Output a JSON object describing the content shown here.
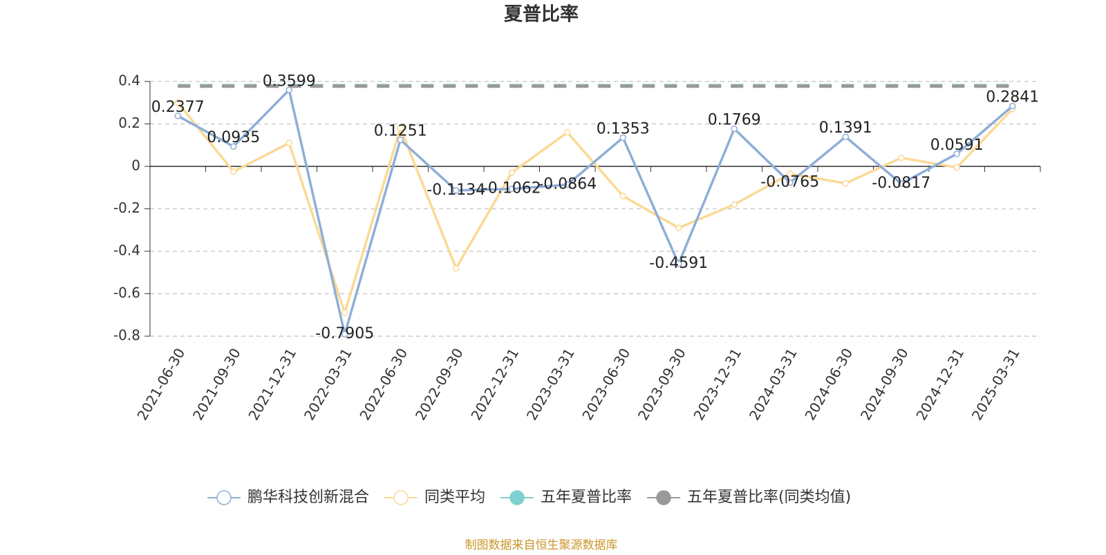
{
  "chart_data": {
    "type": "line",
    "title": "夏普比率",
    "categories": [
      "2021-06-30",
      "2021-09-30",
      "2021-12-31",
      "2022-03-31",
      "2022-06-30",
      "2022-09-30",
      "2022-12-31",
      "2023-03-31",
      "2023-06-30",
      "2023-09-30",
      "2023-12-31",
      "2024-03-31",
      "2024-06-30",
      "2024-09-30",
      "2024-12-31",
      "2025-03-31"
    ],
    "series": [
      {
        "name": "鹏华科技创新混合",
        "color": "#8eaed8",
        "marker": "hollow-circle",
        "data_labels": true,
        "values": [
          0.2377,
          0.0935,
          0.3599,
          -0.7905,
          0.1251,
          -0.1134,
          -0.1062,
          -0.0864,
          0.1353,
          -0.4591,
          0.1769,
          -0.0765,
          0.1391,
          -0.0817,
          0.0591,
          0.2841
        ]
      },
      {
        "name": "同类平均",
        "color": "#fbd994",
        "marker": "hollow-circle",
        "values": [
          0.3,
          -0.025,
          0.11,
          -0.69,
          0.18,
          -0.48,
          -0.03,
          0.16,
          -0.14,
          -0.29,
          -0.18,
          -0.035,
          -0.08,
          0.04,
          -0.005,
          0.27
        ]
      },
      {
        "name": "五年夏普比率",
        "color": "#7fd0d0",
        "marker": "filled-circle",
        "dashed": true,
        "values": [
          0.38,
          0.38,
          0.38,
          0.38,
          0.38,
          0.38,
          0.38,
          0.38,
          0.38,
          0.38,
          0.38,
          0.38,
          0.38,
          0.38,
          0.38,
          0.38
        ]
      },
      {
        "name": "五年夏普比率(同类均值)",
        "color": "#999999",
        "marker": "filled-circle",
        "dashed": true,
        "values": [
          0.378,
          0.378,
          0.378,
          0.378,
          0.378,
          0.378,
          0.378,
          0.378,
          0.378,
          0.378,
          0.378,
          0.378,
          0.378,
          0.378,
          0.378,
          0.378
        ]
      }
    ],
    "ylim": [
      -0.8,
      0.4
    ],
    "yticks": [
      0.4,
      0.2,
      0,
      -0.2,
      -0.4,
      -0.6,
      -0.8
    ],
    "grid": true,
    "legend": "bottom",
    "source": "制图数据来自恒生聚源数据库"
  }
}
